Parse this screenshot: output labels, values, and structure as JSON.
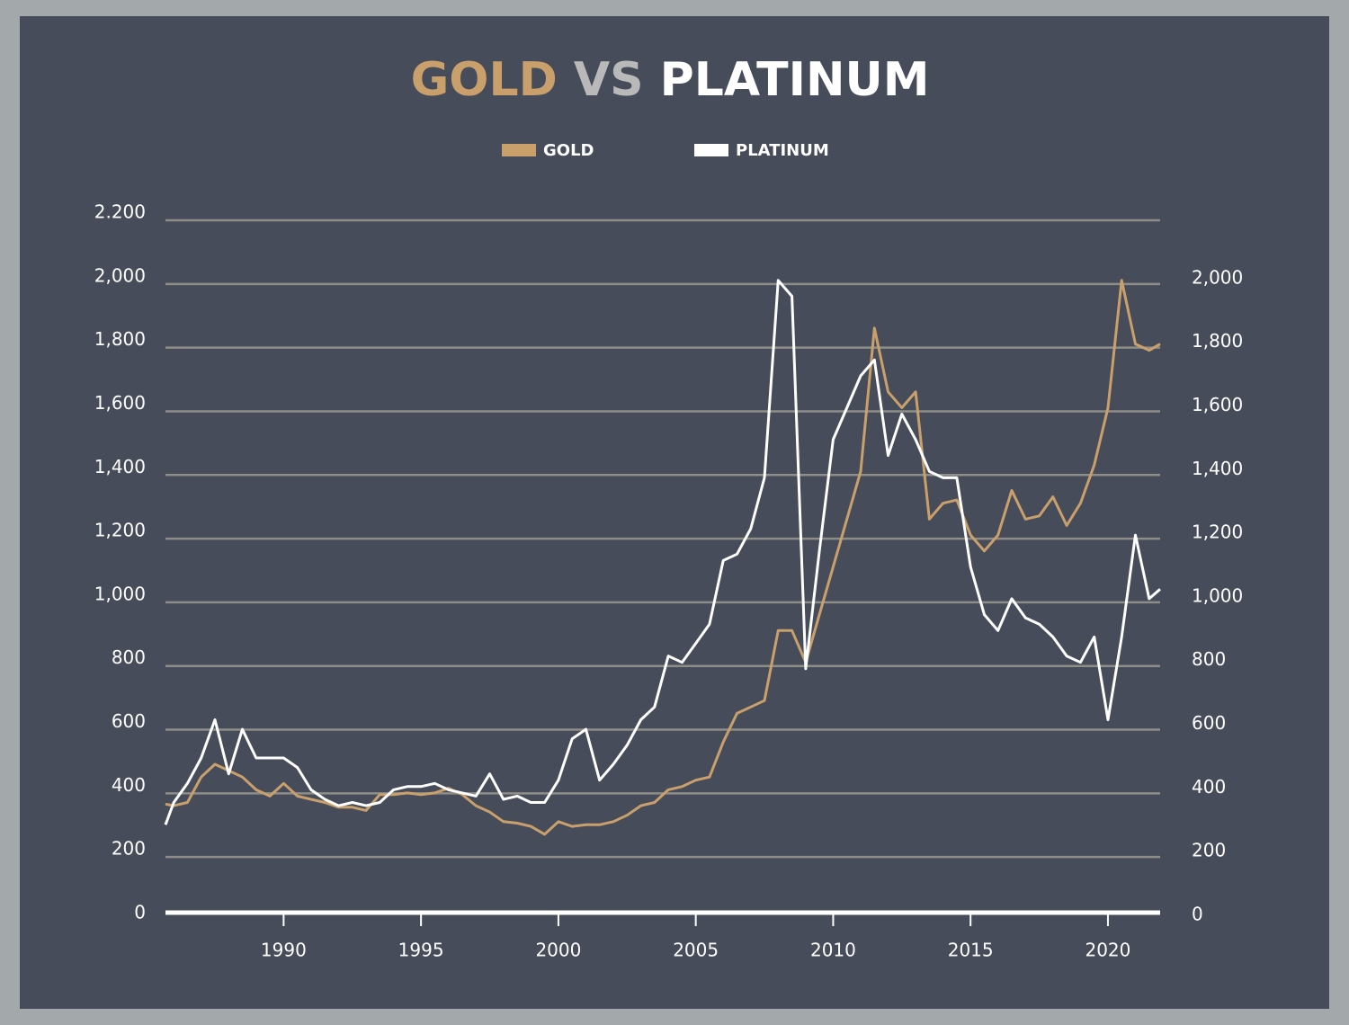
{
  "chart_data": {
    "type": "line",
    "title": [
      "GOLD",
      "VS",
      "PLATINUM"
    ],
    "title_colors": [
      "#c9a06c",
      "#b9b9b9",
      "#ffffff"
    ],
    "legend": "top",
    "grid": true,
    "x": [
      1985.7,
      1986,
      1986.5,
      1987,
      1987.5,
      1988,
      1988.5,
      1989,
      1989.5,
      1990,
      1990.5,
      1991,
      1991.5,
      1992,
      1992.5,
      1993,
      1993.5,
      1994,
      1994.5,
      1995,
      1995.5,
      1996,
      1996.5,
      1997,
      1997.5,
      1998,
      1998.5,
      1999,
      1999.5,
      2000,
      2000.5,
      2001,
      2001.5,
      2002,
      2002.5,
      2003,
      2003.5,
      2004,
      2004.5,
      2005,
      2005.5,
      2006,
      2006.5,
      2007,
      2007.5,
      2008,
      2008.5,
      2009,
      2009.5,
      2010,
      2010.5,
      2011,
      2011.5,
      2012,
      2012.5,
      2013,
      2013.5,
      2014,
      2014.5,
      2015,
      2015.5,
      2016,
      2016.5,
      2017,
      2017.5,
      2018,
      2018.5,
      2019,
      2019.5,
      2020,
      2020.5,
      2021,
      2021.5,
      2021.9
    ],
    "xlim": [
      1985.7,
      2021.9
    ],
    "xticks": [
      1990,
      1995,
      2000,
      2005,
      2010,
      2015,
      2020
    ],
    "ylim": [
      0,
      2200
    ],
    "yticks": [
      0,
      200,
      400,
      600,
      800,
      {
        "value": 1000,
        "label": "1,000"
      },
      {
        "value": 1200,
        "label": "1,200"
      },
      {
        "value": 1400,
        "label": "1,400"
      },
      {
        "value": 1600,
        "label": "1,600"
      },
      {
        "value": 1800,
        "label": "1,800"
      },
      {
        "value": 2000,
        "label": "2,000"
      },
      {
        "value": 2200,
        "label": "2.200"
      }
    ],
    "y2lim": [
      0,
      2200
    ],
    "y2ticks": [
      0,
      200,
      400,
      600,
      800,
      {
        "value": 1000,
        "label": "1,000"
      },
      {
        "value": 1200,
        "label": "1,200"
      },
      {
        "value": 1400,
        "label": "1,400"
      },
      {
        "value": 1600,
        "label": "1,600"
      },
      {
        "value": 1800,
        "label": "1,800"
      },
      {
        "value": 2000,
        "label": "2,000"
      }
    ],
    "series": [
      {
        "name": "GOLD",
        "color": "#c9a06c",
        "values": [
          355,
          350,
          360,
          440,
          480,
          460,
          440,
          400,
          380,
          420,
          380,
          370,
          360,
          345,
          345,
          335,
          385,
          385,
          390,
          385,
          390,
          405,
          385,
          350,
          330,
          300,
          295,
          285,
          260,
          300,
          285,
          290,
          290,
          300,
          320,
          350,
          360,
          400,
          410,
          430,
          440,
          550,
          640,
          660,
          680,
          900,
          900,
          800,
          950,
          1100,
          1250,
          1400,
          1850,
          1650,
          1600,
          1650,
          1250,
          1300,
          1310,
          1200,
          1150,
          1200,
          1340,
          1250,
          1260,
          1320,
          1230,
          1300,
          1420,
          1600,
          2000,
          1800,
          1780,
          1800
        ]
      },
      {
        "name": "PLATINUM",
        "color": "#ffffff",
        "axis": "y2",
        "values": [
          290,
          360,
          420,
          500,
          620,
          450,
          590,
          500,
          500,
          500,
          470,
          400,
          370,
          350,
          360,
          350,
          360,
          400,
          410,
          410,
          420,
          400,
          390,
          380,
          450,
          370,
          380,
          360,
          360,
          430,
          560,
          590,
          430,
          480,
          540,
          620,
          660,
          820,
          800,
          860,
          920,
          1120,
          1140,
          1220,
          1380,
          2000,
          1950,
          780,
          1150,
          1500,
          1600,
          1700,
          1750,
          1450,
          1580,
          1500,
          1400,
          1380,
          1380,
          1100,
          950,
          900,
          1000,
          940,
          920,
          880,
          820,
          800,
          880,
          620,
          880,
          1200,
          1000,
          1030
        ]
      }
    ]
  }
}
